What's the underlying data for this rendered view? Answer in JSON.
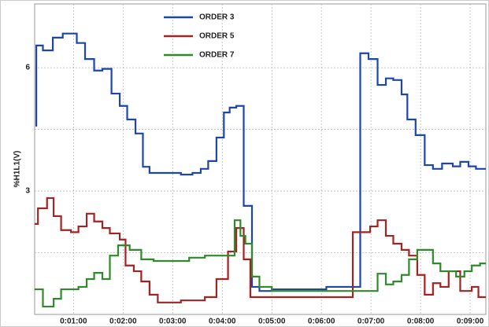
{
  "chart_data": {
    "type": "step-line",
    "y_label": "%H1L1(V)",
    "xlim": [
      13,
      559
    ],
    "ylim": [
      0,
      7.55
    ],
    "xticks": [
      {
        "value": 60,
        "label": "0:01:00"
      },
      {
        "value": 120,
        "label": "0:02:00"
      },
      {
        "value": 180,
        "label": "0:03:00"
      },
      {
        "value": 240,
        "label": "0:04:00"
      },
      {
        "value": 300,
        "label": "0:05:00"
      },
      {
        "value": 360,
        "label": "0:06:00"
      },
      {
        "value": 420,
        "label": "0:07:00"
      },
      {
        "value": 480,
        "label": "0:08:00"
      },
      {
        "value": 540,
        "label": "0:09:00"
      }
    ],
    "yticks": [
      3,
      6
    ],
    "yticks_minor": [
      1.5,
      4.5
    ],
    "grid": true,
    "legend": "top",
    "series": [
      {
        "name": "ORDER 3",
        "color": "#1c46a8",
        "x": [
          14,
          15,
          23,
          35,
          47,
          64,
          74,
          85,
          95,
          106,
          116,
          125,
          135,
          144,
          152,
          190,
          204,
          214,
          223,
          233,
          242,
          249,
          257,
          266,
          276,
          285,
          300,
          366,
          407,
          417,
          428,
          438,
          447,
          457,
          464,
          474,
          485,
          495,
          506,
          519,
          528,
          538,
          547,
          559
        ],
        "values": [
          4.59,
          6.54,
          6.42,
          6.73,
          6.83,
          6.6,
          6.21,
          5.93,
          5.97,
          5.37,
          5.07,
          4.74,
          4.4,
          3.59,
          3.44,
          3.4,
          3.44,
          3.54,
          3.73,
          4.3,
          4.91,
          5.03,
          5.07,
          2.64,
          0.67,
          0.57,
          0.61,
          0.67,
          6.35,
          6.21,
          5.58,
          5.74,
          5.7,
          5.35,
          4.74,
          4.36,
          3.63,
          3.54,
          3.67,
          3.6,
          3.71,
          3.6,
          3.54,
          3.54
        ]
      },
      {
        "name": "ORDER 5",
        "color": "#a32222",
        "x": [
          13,
          17,
          28,
          36,
          45,
          57,
          66,
          76,
          85,
          95,
          104,
          116,
          123,
          133,
          142,
          152,
          162,
          190,
          219,
          233,
          247,
          257,
          266,
          274,
          398,
          419,
          428,
          438,
          447,
          457,
          466,
          476,
          485,
          495,
          504,
          514,
          528,
          542,
          550,
          559
        ],
        "values": [
          2.2,
          2.58,
          2.83,
          2.39,
          2.05,
          2.0,
          2.14,
          2.45,
          2.26,
          2.1,
          1.97,
          1.82,
          1.19,
          1.05,
          0.8,
          0.48,
          0.29,
          0.34,
          0.42,
          0.86,
          1.53,
          2.1,
          1.34,
          0.42,
          2.0,
          2.14,
          2.29,
          1.91,
          1.72,
          1.57,
          1.43,
          0.96,
          0.48,
          0.76,
          0.67,
          1.05,
          0.57,
          0.67,
          0.42,
          0.42
        ]
      },
      {
        "name": "ORDER 7",
        "color": "#2e8a2a",
        "x": [
          13,
          23,
          36,
          45,
          66,
          76,
          85,
          95,
          104,
          114,
          128,
          142,
          157,
          200,
          219,
          255,
          262,
          268,
          276,
          285,
          300,
          428,
          438,
          447,
          457,
          466,
          476,
          495,
          504,
          523,
          533,
          542,
          552,
          559
        ],
        "values": [
          0.61,
          0.19,
          0.38,
          0.61,
          0.67,
          0.86,
          1.01,
          0.86,
          1.43,
          1.68,
          1.57,
          1.34,
          1.3,
          1.38,
          1.43,
          2.29,
          1.91,
          1.72,
          0.92,
          0.67,
          0.57,
          0.99,
          0.73,
          0.8,
          0.96,
          1.34,
          1.57,
          1.24,
          1.05,
          0.92,
          1.05,
          1.19,
          1.24,
          1.24
        ]
      }
    ]
  }
}
